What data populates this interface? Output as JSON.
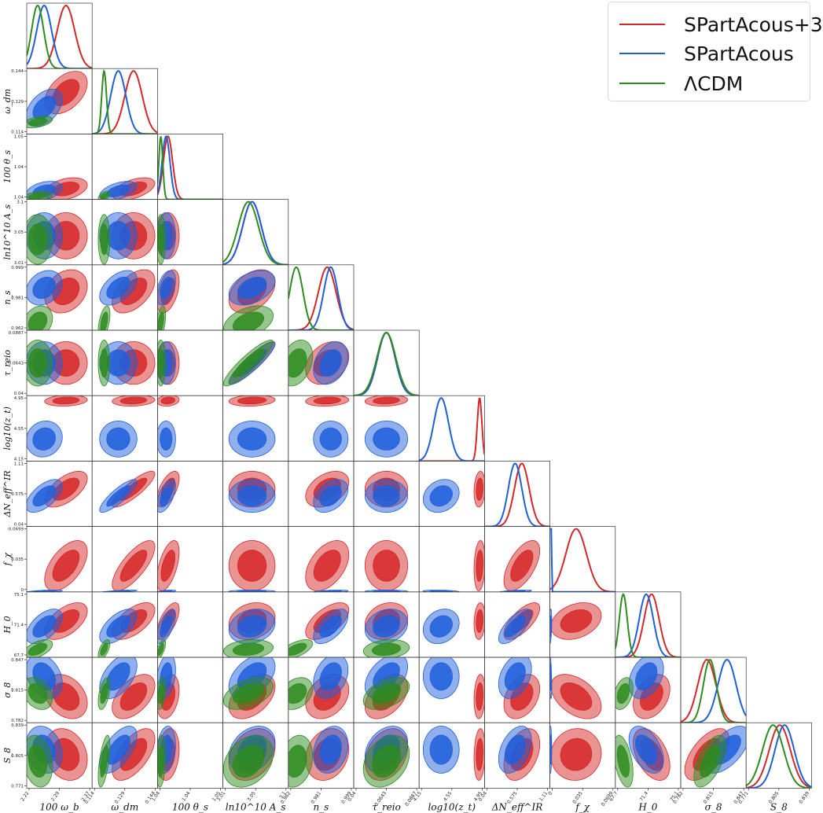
{
  "chart_data": {
    "type": "corner",
    "parameters": [
      {
        "label": "100 ω_b",
        "ticks": [
          "2.22",
          "2.29",
          "2.37"
        ]
      },
      {
        "label": "ω_dm",
        "ticks": [
          "0.114",
          "0.129",
          "0.144"
        ]
      },
      {
        "label": "100 θ_s",
        "ticks": [
          "1.04",
          "1.04",
          "1.05"
        ]
      },
      {
        "label": "ln10^10 A_s",
        "ticks": [
          "3.01",
          "3.05",
          "3.1"
        ]
      },
      {
        "label": "n_s",
        "ticks": [
          "0.962",
          "0.981",
          "0.999"
        ]
      },
      {
        "label": "τ_reio",
        "ticks": [
          "0.04",
          "0.0643",
          "0.0887"
        ]
      },
      {
        "label": "log10(z_t)",
        "ticks": [
          "4.15",
          "4.55",
          "4.95"
        ]
      },
      {
        "label": "ΔN_eff^IR",
        "ticks": [
          "0.04",
          "0.575",
          "1.11"
        ]
      },
      {
        "label": "f_χ",
        "ticks": [
          "0",
          "0.035",
          "0.0699"
        ]
      },
      {
        "label": "H_0",
        "ticks": [
          "67.7",
          "71.4",
          "75.1"
        ]
      },
      {
        "label": "σ_8",
        "ticks": [
          "0.782",
          "0.815",
          "0.847"
        ]
      },
      {
        "label": "S_8",
        "ticks": [
          "0.771",
          "0.805",
          "0.839"
        ]
      }
    ],
    "series": [
      {
        "name": "SPartAcous+3",
        "color": "#d62728",
        "mean": [
          2.31,
          0.133,
          1.0416,
          3.05,
          0.984,
          0.0643,
          4.89,
          0.65,
          0.028,
          71.8,
          0.808,
          0.806
        ],
        "sigma": [
          0.02,
          0.004,
          0.0007,
          0.013,
          0.005,
          0.0065,
          0.028,
          0.12,
          0.011,
          0.85,
          0.009,
          0.011
        ]
      },
      {
        "name": "SPartAcous",
        "color": "#1f5fdc",
        "mean": [
          2.26,
          0.126,
          1.0413,
          3.05,
          0.986,
          0.0643,
          4.42,
          0.54,
          0.0005,
          71.2,
          0.828,
          0.811
        ],
        "sigma": [
          0.017,
          0.0035,
          0.0006,
          0.013,
          0.004,
          0.0065,
          0.09,
          0.11,
          0.0006,
          0.8,
          0.009,
          0.01
        ]
      },
      {
        "name": "ΛCDM",
        "color": "#2e8b1e",
        "mean": [
          2.245,
          0.1195,
          1.0405,
          3.045,
          0.9665,
          0.0643,
          null,
          null,
          null,
          68.6,
          0.811,
          0.799
        ],
        "sigma": [
          0.014,
          0.0011,
          0.0003,
          0.014,
          0.0038,
          0.007,
          null,
          null,
          null,
          0.45,
          0.0065,
          0.011
        ]
      }
    ],
    "legend_position": "top-right"
  }
}
